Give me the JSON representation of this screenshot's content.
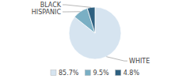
{
  "chart_data": {
    "type": "pie",
    "categories": [
      "WHITE",
      "HISPANIC",
      "BLACK"
    ],
    "values": [
      85.7,
      9.5,
      4.8
    ],
    "value_labels": [
      "85.7%",
      "9.5%",
      "4.8%"
    ],
    "colors": [
      "#d6e4f0",
      "#7aafc4",
      "#2e6080"
    ],
    "legend": "bottom"
  }
}
